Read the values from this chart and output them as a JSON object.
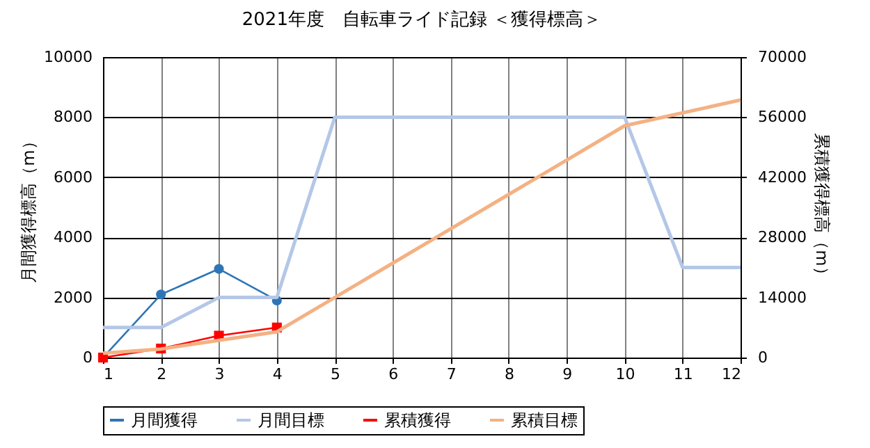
{
  "chart_data": {
    "type": "line",
    "title": "2021年度　自転車ライド記録 ＜獲得標高＞",
    "ylabel": "月間獲得標高（m）",
    "y2label": "累積獲得標高（m）",
    "x": [
      1,
      2,
      3,
      4,
      5,
      6,
      7,
      8,
      9,
      10,
      11,
      12
    ],
    "xlim": [
      1,
      12
    ],
    "xticks": [
      1,
      2,
      3,
      4,
      5,
      6,
      7,
      8,
      9,
      10,
      11,
      12
    ],
    "ylim": [
      0,
      10000
    ],
    "yticks": [
      0,
      2000,
      4000,
      6000,
      8000,
      10000
    ],
    "y2lim": [
      0,
      70000
    ],
    "y2ticks": [
      0,
      14000,
      28000,
      42000,
      56000,
      70000
    ],
    "grid": true,
    "legend": "bottom",
    "series": [
      {
        "name": "月間獲得",
        "color": "#2e75b6",
        "marker": "circle",
        "values": [
          0,
          2100,
          2950,
          1900,
          null,
          null,
          null,
          null,
          null,
          null,
          null,
          null
        ]
      },
      {
        "name": "月間目標",
        "color": "#b4c7e7",
        "marker": "none",
        "values": [
          1000,
          1000,
          2000,
          2000,
          8000,
          8000,
          8000,
          8000,
          8000,
          8000,
          3000,
          3000
        ]
      },
      {
        "name": "累積獲得",
        "color": "#ff0000",
        "marker": "square",
        "axis": "y2",
        "values": [
          0,
          2100,
          5100,
          7000,
          null,
          null,
          null,
          null,
          null,
          null,
          null,
          null
        ]
      },
      {
        "name": "累積目標",
        "color": "#f4b183",
        "marker": "none",
        "axis": "y2",
        "values": [
          1000,
          2000,
          4000,
          6000,
          14000,
          22000,
          30000,
          38000,
          46000,
          54000,
          57000,
          60000
        ]
      }
    ]
  }
}
